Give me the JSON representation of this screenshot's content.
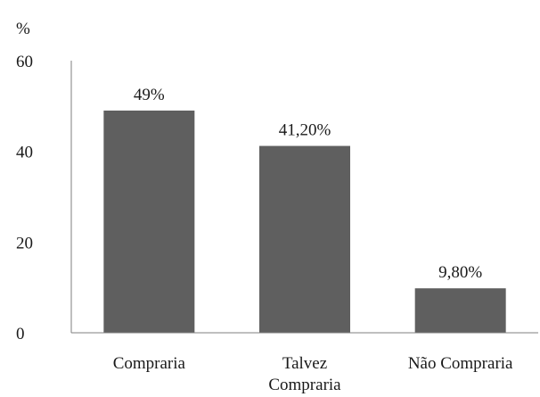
{
  "chart_data": {
    "type": "bar",
    "title": "",
    "xlabel": "",
    "ylabel": "%",
    "ylim": [
      0,
      60
    ],
    "yticks": [
      0,
      20,
      40,
      60
    ],
    "grid": false,
    "categories": [
      [
        "Compraria"
      ],
      [
        "Talvez",
        "Compraria"
      ],
      [
        "Não Compraria"
      ]
    ],
    "values": [
      49,
      41.2,
      9.8
    ],
    "data_labels": [
      "49%",
      "41,20%",
      "9,80%"
    ],
    "bar_color": "#5f5f5f"
  }
}
